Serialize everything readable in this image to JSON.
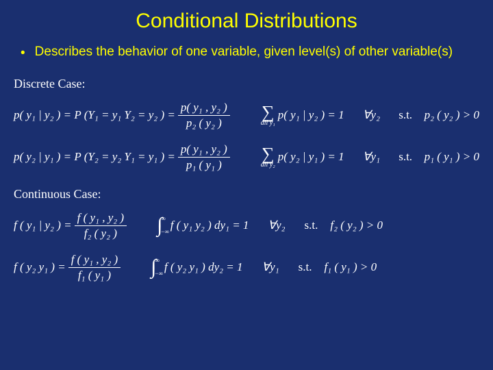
{
  "colors": {
    "background": "#1a2f6f",
    "accent": "#ffff00",
    "text": "#ffffff"
  },
  "title": "Conditional Distributions",
  "bullet": "Describes the behavior of one variable, given level(s) of other variable(s)",
  "sections": {
    "discrete_label": "Discrete Case:",
    "continuous_label": "Continuous Case:"
  },
  "eq": {
    "d1_lhs": "p( y₁ | y₂ ) = P (Y₁ = y₁  Y₂ = y₂ ) =",
    "d1_frac_num": "p( y₁ , y₂ )",
    "d1_frac_den": "p₂ ( y₂ )",
    "d1_sum_body": "p( y₁ | y₂ ) = 1",
    "d1_sum_sub": "all y₁",
    "d1_forall": "∀y₂",
    "d1_st": "s.t.",
    "d1_cond": "p₂ ( y₂ ) > 0",
    "d2_lhs": "p( y₂ | y₁ ) = P (Y₂ = y₂  Y₁ = y₁ ) =",
    "d2_frac_num": "p( y₁ , y₂ )",
    "d2_frac_den": "p₁ ( y₁ )",
    "d2_sum_body": "p( y₂ | y₁ ) = 1",
    "d2_sum_sub": "all y₂",
    "d2_forall": "∀y₁",
    "d2_st": "s.t.",
    "d2_cond": "p₁ ( y₁ ) > 0",
    "c1_lhs": "f ( y₁ | y₂ ) =",
    "c1_frac_num": "f ( y₁ , y₂ )",
    "c1_frac_den": "f₂ ( y₂ )",
    "c1_int_body": "f ( y₁  y₂ ) dy₁ = 1",
    "c1_forall": "∀y₂",
    "c1_st": "s.t.",
    "c1_cond": "f₂ ( y₂ ) > 0",
    "c2_lhs": "f ( y₂  y₁ ) =",
    "c2_frac_num": "f ( y₁ , y₂ )",
    "c2_frac_den": "f₁ ( y₁ )",
    "c2_int_body": "f ( y₂  y₁ ) dy₂ = 1",
    "c2_forall": "∀y₁",
    "c2_st": "s.t.",
    "c2_cond": "f₁ ( y₁ ) > 0",
    "int_upper": "∞",
    "int_lower": "−∞"
  }
}
